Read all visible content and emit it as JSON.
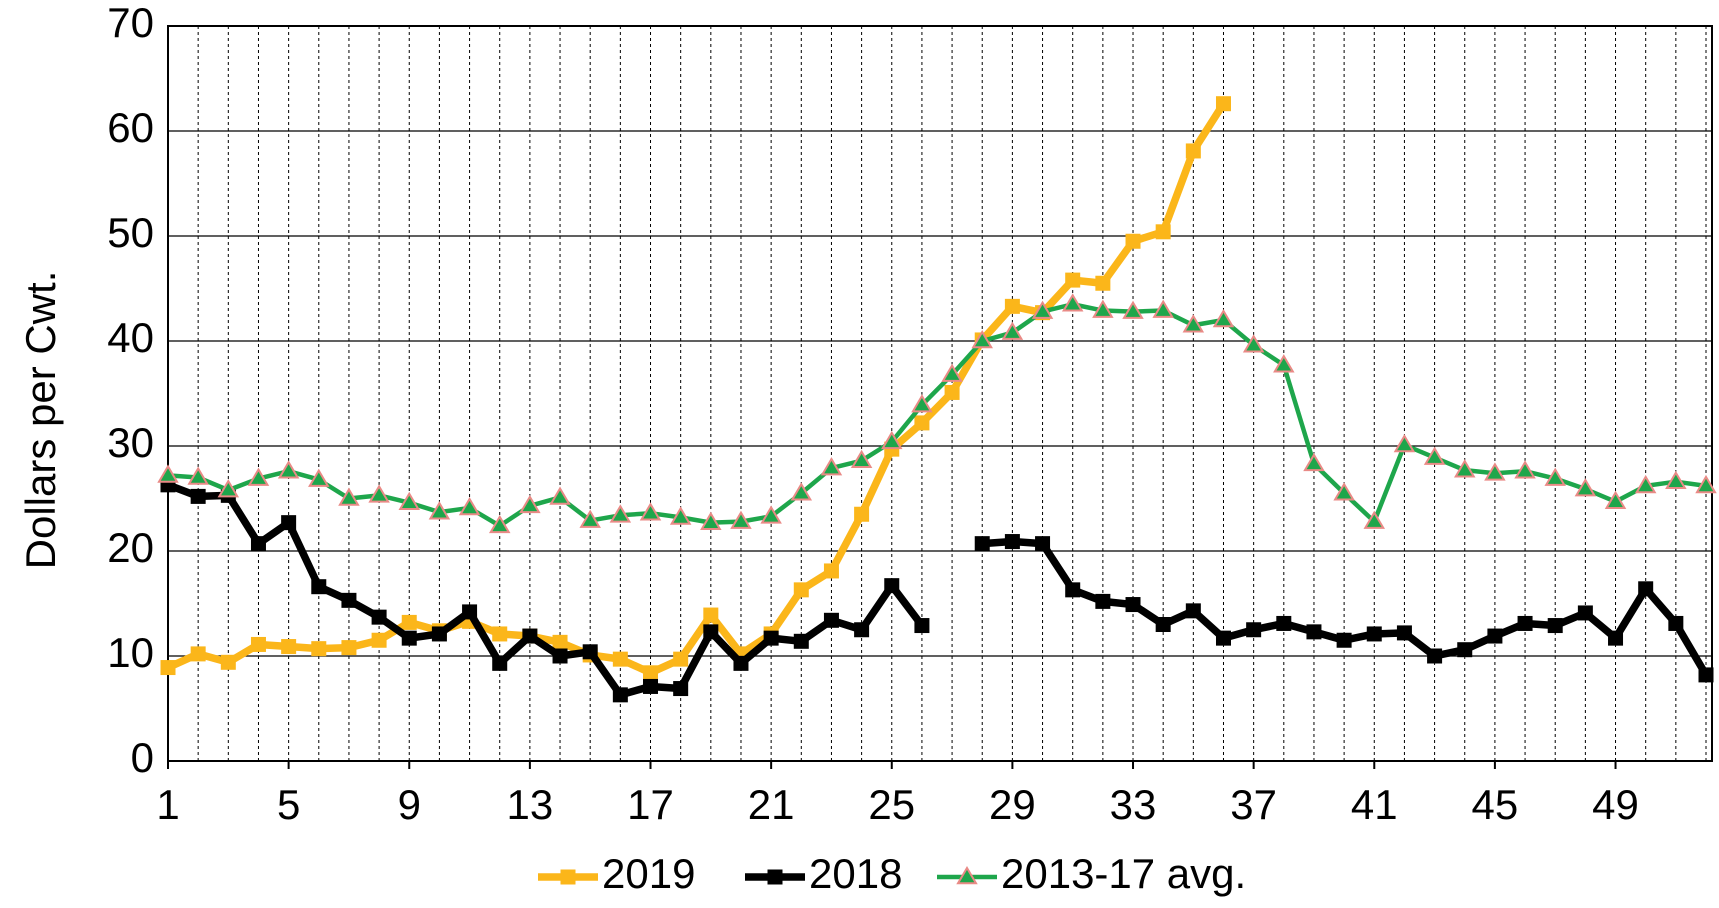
{
  "chart_data": {
    "type": "line",
    "y_label": "Dollars per Cwt.",
    "x": [
      1,
      2,
      3,
      4,
      5,
      6,
      7,
      8,
      9,
      10,
      11,
      12,
      13,
      14,
      15,
      16,
      17,
      18,
      19,
      20,
      21,
      22,
      23,
      24,
      25,
      26,
      27,
      28,
      29,
      30,
      31,
      32,
      33,
      34,
      35,
      36,
      37,
      38,
      39,
      40,
      41,
      42,
      43,
      44,
      45,
      46,
      47,
      48,
      49,
      50,
      51,
      52
    ],
    "xlim": [
      1,
      52
    ],
    "xticks": [
      1,
      5,
      9,
      13,
      17,
      21,
      25,
      29,
      33,
      37,
      41,
      45,
      49
    ],
    "ylim": [
      0,
      70
    ],
    "yticks": [
      0,
      10,
      20,
      30,
      40,
      50,
      60,
      70
    ],
    "grid": true,
    "legend": "bottom",
    "series": [
      {
        "name": "2019",
        "color": "#fbb61a",
        "marker": "square",
        "marker_edge_color": "#fbb61a",
        "values": [
          8.9,
          10.2,
          9.4,
          11.1,
          10.9,
          10.7,
          10.8,
          11.5,
          13.2,
          12.4,
          13.3,
          12.1,
          11.9,
          11.3,
          10.1,
          9.7,
          8.4,
          9.7,
          13.9,
          10.2,
          12.1,
          16.3,
          18.1,
          23.5,
          29.7,
          32.2,
          35.1,
          40.1,
          43.3,
          42.7,
          45.8,
          45.5,
          49.5,
          50.4,
          58.1,
          62.6,
          null,
          null,
          null,
          null,
          null,
          null,
          null,
          null,
          null,
          null,
          null,
          null,
          null,
          null,
          null,
          null
        ]
      },
      {
        "name": "2018",
        "color": "#000000",
        "marker": "square",
        "marker_edge_color": "#000000",
        "values": [
          26.3,
          25.2,
          25.3,
          20.7,
          22.7,
          16.6,
          15.3,
          13.7,
          11.7,
          12.1,
          14.2,
          9.3,
          11.9,
          10.0,
          10.4,
          6.3,
          7.1,
          6.9,
          12.3,
          9.3,
          11.7,
          11.4,
          13.4,
          12.5,
          16.7,
          12.9,
          null,
          20.7,
          20.9,
          20.7,
          16.3,
          15.2,
          14.9,
          13.0,
          14.3,
          11.7,
          12.5,
          13.1,
          12.3,
          11.5,
          12.1,
          12.2,
          10.0,
          10.6,
          11.9,
          13.1,
          12.9,
          14.1,
          11.7,
          16.4,
          13.1,
          8.2
        ]
      },
      {
        "name": "2013-17 avg.",
        "color": "#1ea64b",
        "marker": "triangle",
        "marker_edge_color": "#e98a86",
        "values": [
          27.2,
          27.0,
          25.8,
          26.9,
          27.6,
          26.8,
          25.0,
          25.3,
          24.6,
          23.7,
          24.1,
          22.4,
          24.3,
          25.1,
          22.9,
          23.4,
          23.6,
          23.2,
          22.7,
          22.8,
          23.3,
          25.5,
          27.9,
          28.6,
          30.4,
          33.9,
          36.8,
          40.0,
          40.8,
          42.8,
          43.5,
          42.9,
          42.8,
          42.9,
          41.5,
          42.0,
          39.6,
          37.7,
          28.3,
          25.5,
          22.8,
          30.1,
          28.9,
          27.7,
          27.4,
          27.6,
          26.9,
          25.9,
          24.7,
          26.2,
          26.6,
          26.2
        ]
      }
    ]
  }
}
